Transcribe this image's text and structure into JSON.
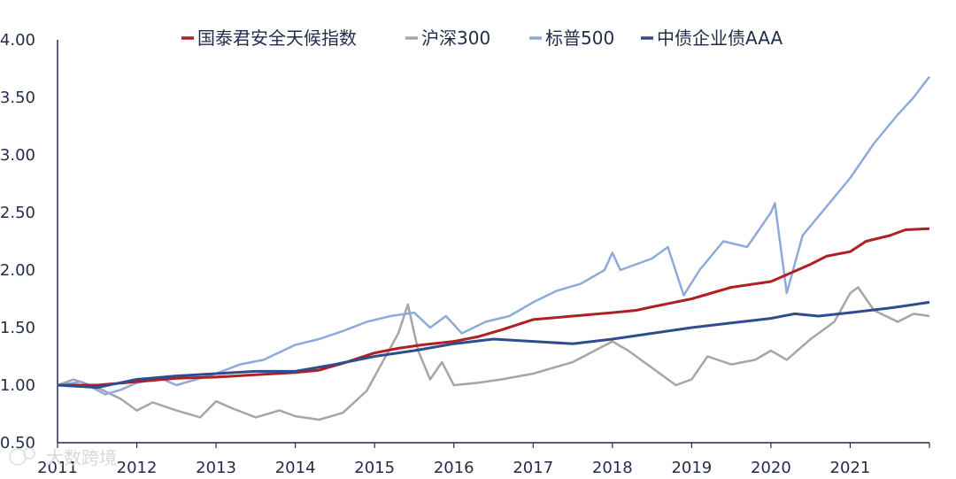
{
  "chart_data": {
    "type": "line",
    "title": "",
    "xlabel": "",
    "ylabel": "",
    "ylim": [
      0.5,
      4.0
    ],
    "xlim": [
      2011,
      2022
    ],
    "y_ticks": [
      "0.50",
      "1.00",
      "1.50",
      "2.00",
      "2.50",
      "3.00",
      "3.50",
      "4.00"
    ],
    "x_ticks": [
      "2011",
      "2012",
      "2013",
      "2014",
      "2015",
      "2016",
      "2017",
      "2018",
      "2019",
      "2020",
      "2021"
    ],
    "grid": false,
    "legend_position": "top",
    "series": [
      {
        "name": "国泰君安全天候指数",
        "color": "#b01f24",
        "points": [
          [
            2011.0,
            1.0
          ],
          [
            2011.5,
            1.0
          ],
          [
            2012.0,
            1.03
          ],
          [
            2012.5,
            1.06
          ],
          [
            2013.0,
            1.07
          ],
          [
            2013.5,
            1.09
          ],
          [
            2014.0,
            1.11
          ],
          [
            2014.3,
            1.13
          ],
          [
            2014.6,
            1.19
          ],
          [
            2015.0,
            1.28
          ],
          [
            2015.3,
            1.32
          ],
          [
            2015.6,
            1.35
          ],
          [
            2016.0,
            1.38
          ],
          [
            2016.3,
            1.42
          ],
          [
            2016.6,
            1.48
          ],
          [
            2017.0,
            1.57
          ],
          [
            2017.5,
            1.6
          ],
          [
            2018.0,
            1.63
          ],
          [
            2018.3,
            1.65
          ],
          [
            2018.5,
            1.68
          ],
          [
            2019.0,
            1.75
          ],
          [
            2019.5,
            1.85
          ],
          [
            2020.0,
            1.9
          ],
          [
            2020.2,
            1.96
          ],
          [
            2020.5,
            2.05
          ],
          [
            2020.7,
            2.12
          ],
          [
            2021.0,
            2.16
          ],
          [
            2021.2,
            2.25
          ],
          [
            2021.5,
            2.3
          ],
          [
            2021.7,
            2.35
          ],
          [
            2022.0,
            2.36
          ]
        ]
      },
      {
        "name": "沪深300",
        "color": "#a6a6a6",
        "points": [
          [
            2011.0,
            1.0
          ],
          [
            2011.2,
            1.05
          ],
          [
            2011.5,
            0.98
          ],
          [
            2011.8,
            0.88
          ],
          [
            2012.0,
            0.78
          ],
          [
            2012.2,
            0.85
          ],
          [
            2012.5,
            0.78
          ],
          [
            2012.8,
            0.72
          ],
          [
            2013.0,
            0.86
          ],
          [
            2013.2,
            0.8
          ],
          [
            2013.5,
            0.72
          ],
          [
            2013.8,
            0.78
          ],
          [
            2014.0,
            0.73
          ],
          [
            2014.3,
            0.7
          ],
          [
            2014.6,
            0.76
          ],
          [
            2014.9,
            0.95
          ],
          [
            2015.1,
            1.2
          ],
          [
            2015.3,
            1.45
          ],
          [
            2015.42,
            1.7
          ],
          [
            2015.55,
            1.3
          ],
          [
            2015.7,
            1.05
          ],
          [
            2015.85,
            1.2
          ],
          [
            2016.0,
            1.0
          ],
          [
            2016.3,
            1.02
          ],
          [
            2016.6,
            1.05
          ],
          [
            2017.0,
            1.1
          ],
          [
            2017.5,
            1.2
          ],
          [
            2018.0,
            1.38
          ],
          [
            2018.2,
            1.3
          ],
          [
            2018.5,
            1.15
          ],
          [
            2018.8,
            1.0
          ],
          [
            2019.0,
            1.05
          ],
          [
            2019.2,
            1.25
          ],
          [
            2019.5,
            1.18
          ],
          [
            2019.8,
            1.22
          ],
          [
            2020.0,
            1.3
          ],
          [
            2020.2,
            1.22
          ],
          [
            2020.5,
            1.4
          ],
          [
            2020.8,
            1.55
          ],
          [
            2021.0,
            1.8
          ],
          [
            2021.1,
            1.85
          ],
          [
            2021.3,
            1.65
          ],
          [
            2021.6,
            1.55
          ],
          [
            2021.8,
            1.62
          ],
          [
            2022.0,
            1.6
          ]
        ]
      },
      {
        "name": "标普500",
        "color": "#8eaadb",
        "points": [
          [
            2011.0,
            1.0
          ],
          [
            2011.3,
            1.03
          ],
          [
            2011.6,
            0.92
          ],
          [
            2011.8,
            0.96
          ],
          [
            2012.0,
            1.02
          ],
          [
            2012.3,
            1.06
          ],
          [
            2012.5,
            1.0
          ],
          [
            2012.8,
            1.06
          ],
          [
            2013.0,
            1.1
          ],
          [
            2013.3,
            1.18
          ],
          [
            2013.6,
            1.22
          ],
          [
            2014.0,
            1.35
          ],
          [
            2014.3,
            1.4
          ],
          [
            2014.6,
            1.47
          ],
          [
            2014.9,
            1.55
          ],
          [
            2015.2,
            1.6
          ],
          [
            2015.5,
            1.63
          ],
          [
            2015.7,
            1.5
          ],
          [
            2015.9,
            1.6
          ],
          [
            2016.1,
            1.45
          ],
          [
            2016.4,
            1.55
          ],
          [
            2016.7,
            1.6
          ],
          [
            2017.0,
            1.72
          ],
          [
            2017.3,
            1.82
          ],
          [
            2017.6,
            1.88
          ],
          [
            2017.9,
            2.0
          ],
          [
            2018.0,
            2.15
          ],
          [
            2018.1,
            2.0
          ],
          [
            2018.5,
            2.1
          ],
          [
            2018.7,
            2.2
          ],
          [
            2018.9,
            1.78
          ],
          [
            2019.1,
            2.0
          ],
          [
            2019.4,
            2.25
          ],
          [
            2019.7,
            2.2
          ],
          [
            2020.0,
            2.5
          ],
          [
            2020.05,
            2.58
          ],
          [
            2020.2,
            1.8
          ],
          [
            2020.4,
            2.3
          ],
          [
            2020.7,
            2.55
          ],
          [
            2021.0,
            2.8
          ],
          [
            2021.3,
            3.1
          ],
          [
            2021.6,
            3.35
          ],
          [
            2021.8,
            3.5
          ],
          [
            2022.0,
            3.68
          ]
        ]
      },
      {
        "name": "中债企业债AAA",
        "color": "#2f4d8c",
        "points": [
          [
            2011.0,
            1.0
          ],
          [
            2011.5,
            0.98
          ],
          [
            2012.0,
            1.05
          ],
          [
            2012.5,
            1.08
          ],
          [
            2013.0,
            1.1
          ],
          [
            2013.5,
            1.12
          ],
          [
            2014.0,
            1.12
          ],
          [
            2014.5,
            1.18
          ],
          [
            2015.0,
            1.25
          ],
          [
            2015.5,
            1.3
          ],
          [
            2016.0,
            1.36
          ],
          [
            2016.5,
            1.4
          ],
          [
            2017.0,
            1.38
          ],
          [
            2017.5,
            1.36
          ],
          [
            2018.0,
            1.4
          ],
          [
            2018.5,
            1.45
          ],
          [
            2019.0,
            1.5
          ],
          [
            2019.5,
            1.54
          ],
          [
            2020.0,
            1.58
          ],
          [
            2020.3,
            1.62
          ],
          [
            2020.6,
            1.6
          ],
          [
            2021.0,
            1.63
          ],
          [
            2021.5,
            1.67
          ],
          [
            2022.0,
            1.72
          ]
        ]
      }
    ]
  },
  "watermark": "大数跨境"
}
